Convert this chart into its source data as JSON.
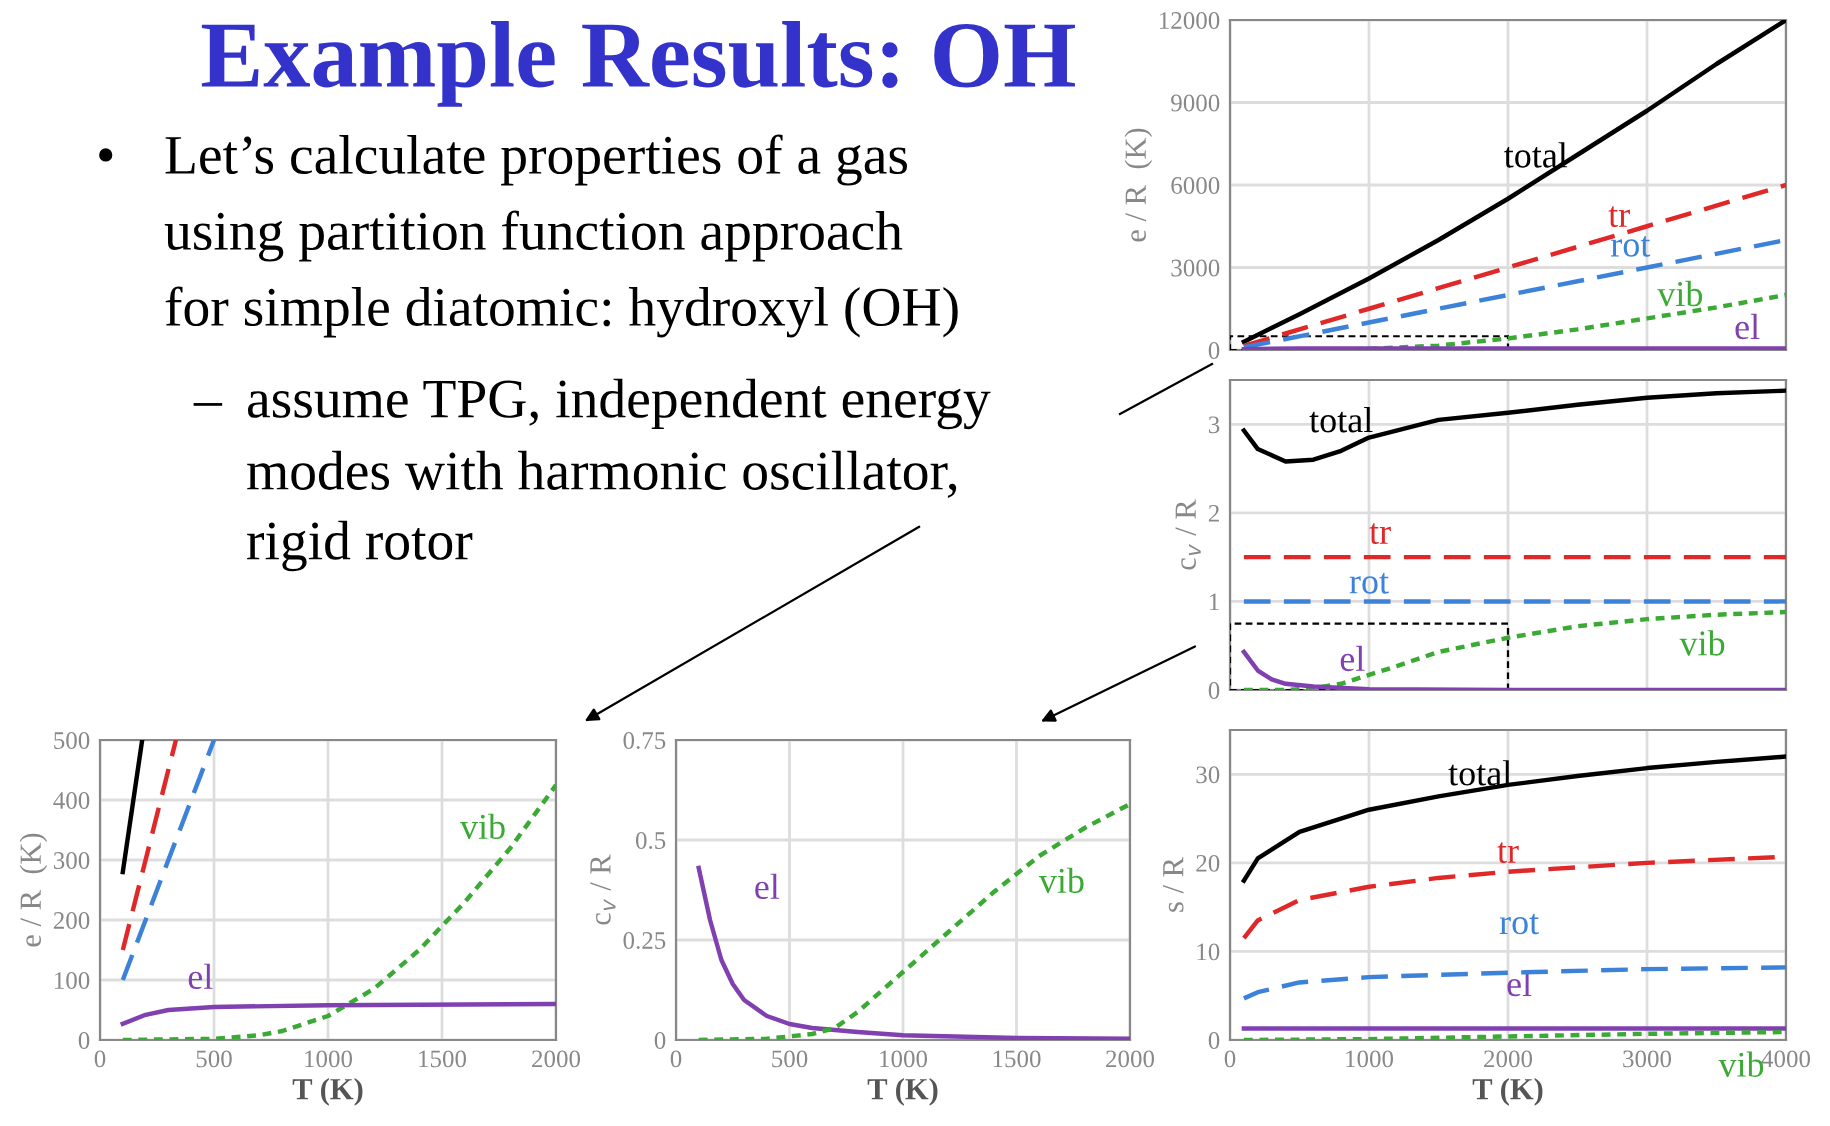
{
  "chart_data": [
    {
      "type": "other",
      "title": "Example Results: OH",
      "annotations": [
        "•",
        "Let’s calculate properties of a gas",
        "using partition function approach",
        "for simple diatomic: hydroxyl (OH)",
        "–",
        "assume TPG, independent energy",
        "modes with harmonic oscillator,",
        "rigid rotor"
      ]
    },
    {
      "type": "line",
      "ylabel": "e / R  (K)",
      "xlim": [
        0,
        4000
      ],
      "xticks": [
        0,
        1000,
        2000,
        3000,
        4000
      ],
      "ylim": [
        0,
        12000
      ],
      "yticks": [
        0,
        3000,
        6000,
        9000,
        12000
      ],
      "grid": true,
      "tick_labels": "y",
      "series": [
        {
          "name": "total",
          "color": "#000000",
          "line_style": "solid",
          "x": [
            100,
            500,
            1000,
            1500,
            2000,
            2500,
            3000,
            3500,
            4000
          ],
          "values": [
            300,
            1300,
            2600,
            4000,
            5500,
            7100,
            8700,
            10400,
            12000
          ]
        },
        {
          "name": "tr",
          "color": "#e02828",
          "line_style": "dashed",
          "x": [
            100,
            1000,
            2000,
            3000,
            4000
          ],
          "values": [
            150,
            1500,
            3000,
            4500,
            6000
          ]
        },
        {
          "name": "rot",
          "color": "#3c82d8",
          "line_style": "dashed",
          "x": [
            100,
            1000,
            2000,
            3000,
            4000
          ],
          "values": [
            100,
            1000,
            2000,
            3000,
            4000
          ]
        },
        {
          "name": "vib",
          "color": "#3aaa35",
          "line_style": "dotted",
          "x": [
            100,
            500,
            1000,
            1500,
            2000,
            2500,
            3000,
            3500,
            4000
          ],
          "values": [
            0,
            0,
            40,
            160,
            420,
            750,
            1150,
            1550,
            2000
          ]
        },
        {
          "name": "el",
          "color": "#8040b0",
          "line_style": "solid",
          "x": [
            100,
            500,
            1000,
            4000
          ],
          "values": [
            30,
            60,
            60,
            60
          ]
        }
      ]
    },
    {
      "type": "line",
      "ylabel": "c$_{v}$ / R",
      "xlim": [
        0,
        4000
      ],
      "xticks": [
        0,
        1000,
        2000,
        3000,
        4000
      ],
      "ylim": [
        0,
        3.5
      ],
      "yticks": [
        0,
        1,
        2,
        3
      ],
      "grid": true,
      "tick_labels": "y",
      "series": [
        {
          "name": "total",
          "color": "#000000",
          "line_style": "solid",
          "x": [
            100,
            200,
            400,
            600,
            800,
            1000,
            1500,
            2000,
            2500,
            3000,
            3500,
            4000
          ],
          "values": [
            2.93,
            2.72,
            2.58,
            2.6,
            2.7,
            2.85,
            3.05,
            3.13,
            3.22,
            3.3,
            3.35,
            3.38
          ]
        },
        {
          "name": "tr",
          "color": "#e02828",
          "line_style": "dashed",
          "x": [
            100,
            4000
          ],
          "values": [
            1.5,
            1.5
          ]
        },
        {
          "name": "rot",
          "color": "#3c82d8",
          "line_style": "dashed",
          "x": [
            100,
            4000
          ],
          "values": [
            1.0,
            1.0
          ]
        },
        {
          "name": "vib",
          "color": "#3aaa35",
          "line_style": "dotted",
          "x": [
            100,
            400,
            600,
            800,
            1000,
            1200,
            1500,
            2000,
            2500,
            3000,
            3500,
            4000
          ],
          "values": [
            0,
            0.0,
            0.02,
            0.07,
            0.17,
            0.27,
            0.43,
            0.59,
            0.72,
            0.8,
            0.85,
            0.88
          ]
        },
        {
          "name": "el",
          "color": "#8040b0",
          "line_style": "solid",
          "x": [
            100,
            200,
            300,
            400,
            600,
            1000,
            2000,
            4000
          ],
          "values": [
            0.43,
            0.22,
            0.12,
            0.07,
            0.04,
            0.01,
            0.0,
            0.0
          ]
        }
      ]
    },
    {
      "type": "line",
      "ylabel": "e / R  (K)",
      "xlabel": "T (K)",
      "xlim": [
        0,
        2000
      ],
      "xticks": [
        0,
        500,
        1000,
        1500,
        2000
      ],
      "ylim": [
        0,
        500
      ],
      "yticks": [
        0,
        100,
        200,
        300,
        400,
        500
      ],
      "grid": true,
      "series": [
        {
          "color": "#000000",
          "line_style": "solid",
          "x": [
            100,
            185
          ],
          "values": [
            280,
            500
          ]
        },
        {
          "color": "#e02828",
          "line_style": "dashed",
          "x": [
            100,
            333
          ],
          "values": [
            150,
            500
          ]
        },
        {
          "color": "#3c82d8",
          "line_style": "dashed",
          "x": [
            100,
            500
          ],
          "values": [
            100,
            500
          ]
        },
        {
          "name": "vib",
          "color": "#3aaa35",
          "line_style": "dotted",
          "x": [
            100,
            500,
            700,
            800,
            1000,
            1200,
            1400,
            1600,
            1800,
            2000
          ],
          "values": [
            0,
            2,
            8,
            15,
            40,
            85,
            150,
            230,
            320,
            425
          ]
        },
        {
          "name": "el",
          "color": "#8040b0",
          "line_style": "solid",
          "x": [
            100,
            200,
            300,
            500,
            1000,
            2000
          ],
          "values": [
            27,
            42,
            50,
            55,
            58,
            60
          ]
        }
      ]
    },
    {
      "type": "line",
      "ylabel": "c$_{v}$ / R",
      "xlabel": "T (K)",
      "xlim": [
        0,
        2000
      ],
      "xticks": [
        0,
        500,
        1000,
        1500,
        2000
      ],
      "ylim": [
        0,
        0.75
      ],
      "yticks": [
        0,
        0.25,
        0.5,
        0.75
      ],
      "grid": true,
      "series": [
        {
          "name": "el",
          "color": "#8040b0",
          "line_style": "solid",
          "x": [
            100,
            150,
            200,
            250,
            300,
            400,
            500,
            600,
            800,
            1000,
            1500,
            2000
          ],
          "values": [
            0.43,
            0.3,
            0.2,
            0.14,
            0.1,
            0.06,
            0.04,
            0.03,
            0.02,
            0.012,
            0.005,
            0.003
          ]
        },
        {
          "name": "vib",
          "color": "#3aaa35",
          "line_style": "dotted",
          "x": [
            100,
            400,
            600,
            700,
            800,
            1000,
            1200,
            1400,
            1600,
            1800,
            2000
          ],
          "values": [
            0,
            0.003,
            0.015,
            0.03,
            0.07,
            0.17,
            0.27,
            0.37,
            0.46,
            0.53,
            0.59
          ]
        }
      ]
    },
    {
      "type": "line",
      "ylabel": "s / R",
      "xlabel": "T (K)",
      "xlim": [
        0,
        4000
      ],
      "xticks": [
        0,
        1000,
        2000,
        3000,
        4000
      ],
      "ylim": [
        0,
        35
      ],
      "yticks": [
        0,
        10,
        20,
        30
      ],
      "grid": true,
      "series": [
        {
          "name": "total",
          "color": "#000000",
          "line_style": "solid",
          "x": [
            100,
            200,
            500,
            1000,
            1500,
            2000,
            2500,
            3000,
            3500,
            4000
          ],
          "values": [
            18,
            20.5,
            23.5,
            26,
            27.5,
            28.8,
            29.8,
            30.7,
            31.4,
            32
          ]
        },
        {
          "name": "tr",
          "color": "#e02828",
          "line_style": "dashed",
          "x": [
            100,
            200,
            500,
            1000,
            1500,
            2000,
            3000,
            4000
          ],
          "values": [
            11.5,
            13.5,
            15.8,
            17.3,
            18.3,
            19,
            20,
            20.7
          ]
        },
        {
          "name": "rot",
          "color": "#3c82d8",
          "line_style": "dashed",
          "x": [
            100,
            200,
            500,
            1000,
            2000,
            3000,
            4000
          ],
          "values": [
            4.7,
            5.4,
            6.5,
            7.1,
            7.6,
            8,
            8.2
          ]
        },
        {
          "name": "el",
          "color": "#8040b0",
          "line_style": "solid",
          "x": [
            100,
            4000
          ],
          "values": [
            1.3,
            1.3
          ]
        },
        {
          "name": "vib",
          "color": "#3aaa35",
          "line_style": "dotted",
          "x": [
            100,
            1000,
            2000,
            3000,
            4000
          ],
          "values": [
            0,
            0.1,
            0.4,
            0.7,
            0.9
          ]
        }
      ]
    }
  ]
}
